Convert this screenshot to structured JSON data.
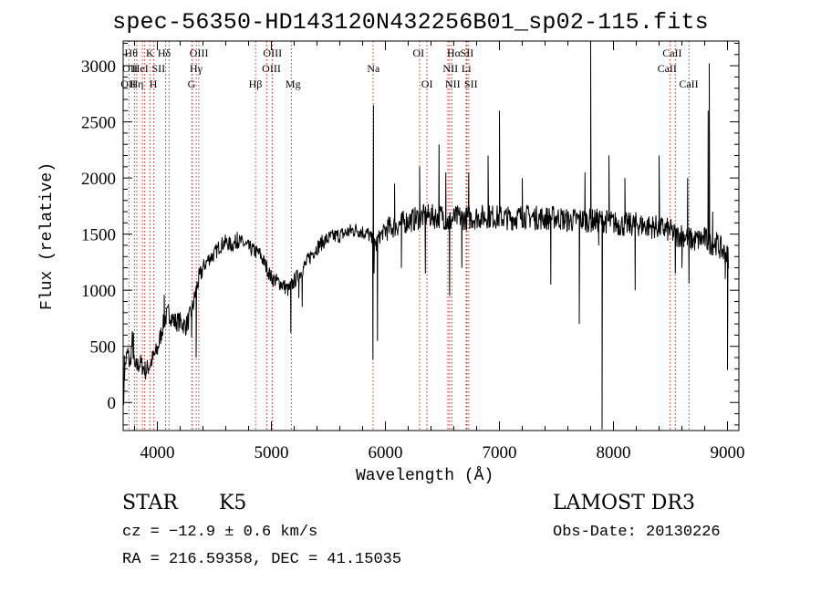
{
  "chart_data": {
    "type": "line",
    "title": "spec-56350-HD143120N432256B01_sp02-115.fits",
    "xlabel": "Wavelength (Å)",
    "ylabel": "Flux (relative)",
    "xlim": [
      3700,
      9100
    ],
    "ylim": [
      -250,
      3220
    ],
    "xticks": [
      4000,
      5000,
      6000,
      7000,
      8000,
      9000
    ],
    "yticks": [
      0,
      500,
      1000,
      1500,
      2000,
      2500,
      3000
    ],
    "grid": false,
    "legend": "none",
    "series": [
      {
        "name": "flux",
        "anchors": [
          [
            3700,
            100
          ],
          [
            3720,
            350
          ],
          [
            3740,
            450
          ],
          [
            3760,
            320
          ],
          [
            3780,
            560
          ],
          [
            3800,
            300
          ],
          [
            3850,
            350
          ],
          [
            3900,
            280
          ],
          [
            3950,
            370
          ],
          [
            4000,
            470
          ],
          [
            4030,
            600
          ],
          [
            4060,
            730
          ],
          [
            4100,
            800
          ],
          [
            4150,
            720
          ],
          [
            4200,
            720
          ],
          [
            4250,
            680
          ],
          [
            4300,
            800
          ],
          [
            4350,
            1050
          ],
          [
            4400,
            1200
          ],
          [
            4450,
            1280
          ],
          [
            4500,
            1320
          ],
          [
            4550,
            1400
          ],
          [
            4600,
            1430
          ],
          [
            4650,
            1400
          ],
          [
            4700,
            1440
          ],
          [
            4750,
            1420
          ],
          [
            4800,
            1380
          ],
          [
            4850,
            1350
          ],
          [
            4900,
            1320
          ],
          [
            4950,
            1220
          ],
          [
            5000,
            1110
          ],
          [
            5050,
            1080
          ],
          [
            5100,
            1050
          ],
          [
            5150,
            1000
          ],
          [
            5200,
            1080
          ],
          [
            5250,
            1150
          ],
          [
            5300,
            1230
          ],
          [
            5350,
            1320
          ],
          [
            5400,
            1380
          ],
          [
            5450,
            1430
          ],
          [
            5500,
            1460
          ],
          [
            5550,
            1480
          ],
          [
            5600,
            1490
          ],
          [
            5650,
            1510
          ],
          [
            5700,
            1530
          ],
          [
            5750,
            1540
          ],
          [
            5800,
            1520
          ],
          [
            5850,
            1500
          ],
          [
            5880,
            1450
          ],
          [
            5900,
            1400
          ],
          [
            5950,
            1480
          ],
          [
            6000,
            1540
          ],
          [
            6050,
            1560
          ],
          [
            6100,
            1580
          ],
          [
            6150,
            1600
          ],
          [
            6200,
            1620
          ],
          [
            6250,
            1630
          ],
          [
            6300,
            1650
          ],
          [
            6350,
            1660
          ],
          [
            6400,
            1660
          ],
          [
            6450,
            1650
          ],
          [
            6500,
            1670
          ],
          [
            6550,
            1600
          ],
          [
            6600,
            1640
          ],
          [
            6650,
            1650
          ],
          [
            6700,
            1640
          ],
          [
            6800,
            1650
          ],
          [
            6900,
            1660
          ],
          [
            7000,
            1650
          ],
          [
            7100,
            1640
          ],
          [
            7200,
            1660
          ],
          [
            7300,
            1650
          ],
          [
            7400,
            1640
          ],
          [
            7500,
            1650
          ],
          [
            7600,
            1620
          ],
          [
            7700,
            1630
          ],
          [
            7800,
            1620
          ],
          [
            7900,
            1620
          ],
          [
            8000,
            1600
          ],
          [
            8100,
            1580
          ],
          [
            8200,
            1590
          ],
          [
            8300,
            1570
          ],
          [
            8400,
            1560
          ],
          [
            8500,
            1530
          ],
          [
            8550,
            1480
          ],
          [
            8600,
            1500
          ],
          [
            8700,
            1440
          ],
          [
            8800,
            1460
          ],
          [
            8850,
            1420
          ],
          [
            8900,
            1420
          ],
          [
            8950,
            1360
          ],
          [
            9000,
            1300
          ]
        ],
        "features": [
          [
            3705,
            -20
          ],
          [
            3710,
            420
          ],
          [
            3790,
            620
          ],
          [
            4060,
            960
          ],
          [
            4300,
            580
          ],
          [
            4340,
            400
          ],
          [
            4700,
            1520
          ],
          [
            5170,
            620
          ],
          [
            5240,
            930
          ],
          [
            5270,
            850
          ],
          [
            5890,
            380
          ],
          [
            5895,
            2650
          ],
          [
            5900,
            1150
          ],
          [
            5920,
            1350
          ],
          [
            5930,
            550
          ],
          [
            6080,
            1950
          ],
          [
            6140,
            1200
          ],
          [
            6300,
            2100
          ],
          [
            6350,
            1150
          ],
          [
            6470,
            2300
          ],
          [
            6530,
            2050
          ],
          [
            6563,
            950
          ],
          [
            6670,
            1200
          ],
          [
            6730,
            2050
          ],
          [
            6900,
            2200
          ],
          [
            7000,
            2600
          ],
          [
            7200,
            2000
          ],
          [
            7450,
            1050
          ],
          [
            7750,
            2050
          ],
          [
            7800,
            3200
          ],
          [
            7870,
            1400
          ],
          [
            7900,
            -240
          ],
          [
            7960,
            2200
          ],
          [
            7700,
            700
          ],
          [
            8100,
            2000
          ],
          [
            8190,
            1000
          ],
          [
            8400,
            2200
          ],
          [
            8542,
            1150
          ],
          [
            8600,
            1200
          ],
          [
            8650,
            2000
          ],
          [
            8662,
            1060
          ],
          [
            8830,
            2600
          ],
          [
            8840,
            3020
          ],
          [
            8870,
            1700
          ],
          [
            8980,
            1100
          ],
          [
            9000,
            290
          ]
        ]
      }
    ],
    "lines": [
      {
        "wave": 3750,
        "labels": [
          "OII",
          "OII"
        ]
      },
      {
        "wave": 3799,
        "labels": [
          "Hθ"
        ]
      },
      {
        "wave": 3820,
        "labels": [
          "Hη"
        ]
      },
      {
        "wave": 3869,
        "labels": [
          "He I"
        ]
      },
      {
        "wave": 3889,
        "labels": [
          "Hη"
        ]
      },
      {
        "wave": 3934,
        "labels": [
          "K"
        ]
      },
      {
        "wave": 3969,
        "labels": [
          "H"
        ]
      },
      {
        "wave": 4072,
        "labels": [
          "SII"
        ]
      },
      {
        "wave": 4102,
        "labels": [
          "Hδ"
        ]
      },
      {
        "wave": 4304,
        "labels": [
          "G"
        ]
      },
      {
        "wave": 4341,
        "labels": [
          "Hγ"
        ]
      },
      {
        "wave": 4363,
        "labels": [
          "OIII"
        ]
      },
      {
        "wave": 4861,
        "labels": [
          "Hβ"
        ]
      },
      {
        "wave": 4959,
        "labels": [
          "OIII"
        ]
      },
      {
        "wave": 5007,
        "labels": [
          "OIII"
        ]
      },
      {
        "wave": 5175,
        "labels": [
          "Mg"
        ]
      },
      {
        "wave": 5892,
        "labels": [
          "Na"
        ]
      },
      {
        "wave": 6300,
        "labels": [
          "OI"
        ]
      },
      {
        "wave": 6364,
        "labels": [
          "OI"
        ]
      },
      {
        "wave": 6548,
        "labels": [
          "NII"
        ]
      },
      {
        "wave": 6563,
        "labels": [
          "Hα"
        ]
      },
      {
        "wave": 6583,
        "labels": [
          "NII"
        ]
      },
      {
        "wave": 6708,
        "labels": [
          "Li"
        ]
      },
      {
        "wave": 6716,
        "labels": [
          "SII"
        ]
      },
      {
        "wave": 6731,
        "labels": [
          "SII"
        ]
      },
      {
        "wave": 8498,
        "labels": [
          "CaII"
        ]
      },
      {
        "wave": 8542,
        "labels": [
          "CaII"
        ]
      },
      {
        "wave": 8662,
        "labels": [
          "CaII"
        ]
      }
    ],
    "line_label_rows": [
      {
        "row": 0,
        "items": [
          {
            "wave": 3770,
            "text": "Hθ"
          },
          {
            "wave": 3935,
            "text": "K"
          },
          {
            "wave": 4060,
            "text": "Hδ"
          },
          {
            "wave": 4365,
            "text": "OIII"
          },
          {
            "wave": 5010,
            "text": "OIII"
          },
          {
            "wave": 6290,
            "text": "OI"
          },
          {
            "wave": 6600,
            "text": "Hα"
          },
          {
            "wave": 6715,
            "text": "SII"
          },
          {
            "wave": 8515,
            "text": "CaII"
          }
        ]
      },
      {
        "row": 1,
        "items": [
          {
            "wave": 3760,
            "text": "OII"
          },
          {
            "wave": 3850,
            "text": "HeI"
          },
          {
            "wave": 4010,
            "text": "SII"
          },
          {
            "wave": 4340,
            "text": "Hγ"
          },
          {
            "wave": 5000,
            "text": "OIII"
          },
          {
            "wave": 5895,
            "text": "Na"
          },
          {
            "wave": 6570,
            "text": "NII"
          },
          {
            "wave": 6710,
            "text": "Li"
          },
          {
            "wave": 8470,
            "text": "CaII"
          }
        ]
      },
      {
        "row": 2,
        "items": [
          {
            "wave": 3745,
            "text": "OII"
          },
          {
            "wave": 3820,
            "text": "Hη"
          },
          {
            "wave": 3965,
            "text": "H"
          },
          {
            "wave": 4300,
            "text": "G"
          },
          {
            "wave": 4860,
            "text": "Hβ"
          },
          {
            "wave": 5190,
            "text": "Mg"
          },
          {
            "wave": 6365,
            "text": "OI"
          },
          {
            "wave": 6590,
            "text": "NII"
          },
          {
            "wave": 6750,
            "text": "SII"
          },
          {
            "wave": 8660,
            "text": "CaII"
          }
        ]
      }
    ],
    "colors": {
      "spectrum": "#000000",
      "line_markers": "#cc2a1e",
      "axes": "#000000",
      "background": "#ffffff"
    }
  },
  "footer": {
    "object_class": "STAR",
    "subclass": "K5",
    "cz": "cz = −12.9 ± 0.6 km/s",
    "coords": "RA = 216.59358, DEC =  41.15035",
    "survey": "LAMOST DR3",
    "obs_date": "Obs-Date: 20130226"
  }
}
